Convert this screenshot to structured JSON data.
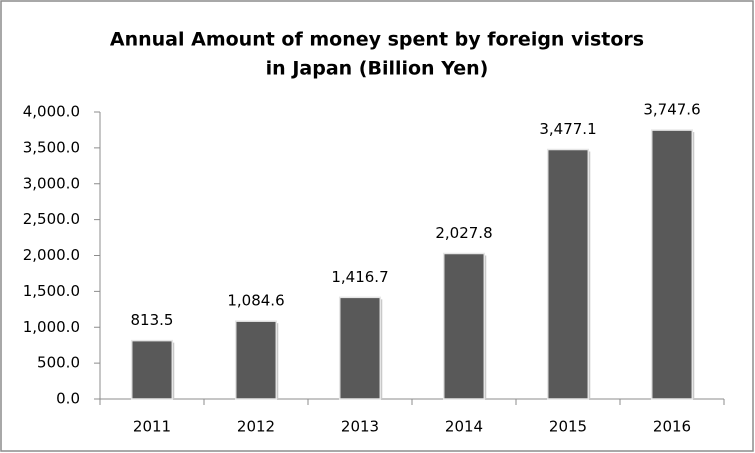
{
  "chart_data": {
    "type": "bar",
    "title": [
      "Annual Amount of money spent by foreign vistors",
      "in Japan (Billion Yen)"
    ],
    "categories": [
      "2011",
      "2012",
      "2013",
      "2014",
      "2015",
      "2016"
    ],
    "values": [
      813.5,
      1084.6,
      1416.7,
      2027.8,
      3477.1,
      3747.6
    ],
    "value_labels": [
      "813.5",
      "1,084.6",
      "1,416.7",
      "2,027.8",
      "3,477.1",
      "3,747.6"
    ],
    "color": "#595959",
    "ylim": [
      0,
      4000
    ],
    "yticks": [
      {
        "value": 0,
        "label": "0.0"
      },
      {
        "value": 500,
        "label": "500.0"
      },
      {
        "value": 1000,
        "label": "1,000.0"
      },
      {
        "value": 1500,
        "label": "1,500.0"
      },
      {
        "value": 2000,
        "label": "2,000.0"
      },
      {
        "value": 2500,
        "label": "2,500.0"
      },
      {
        "value": 3000,
        "label": "3,000.0"
      },
      {
        "value": 3500,
        "label": "3,500.0"
      },
      {
        "value": 4000,
        "label": "4,000.0"
      }
    ],
    "grid": false
  }
}
